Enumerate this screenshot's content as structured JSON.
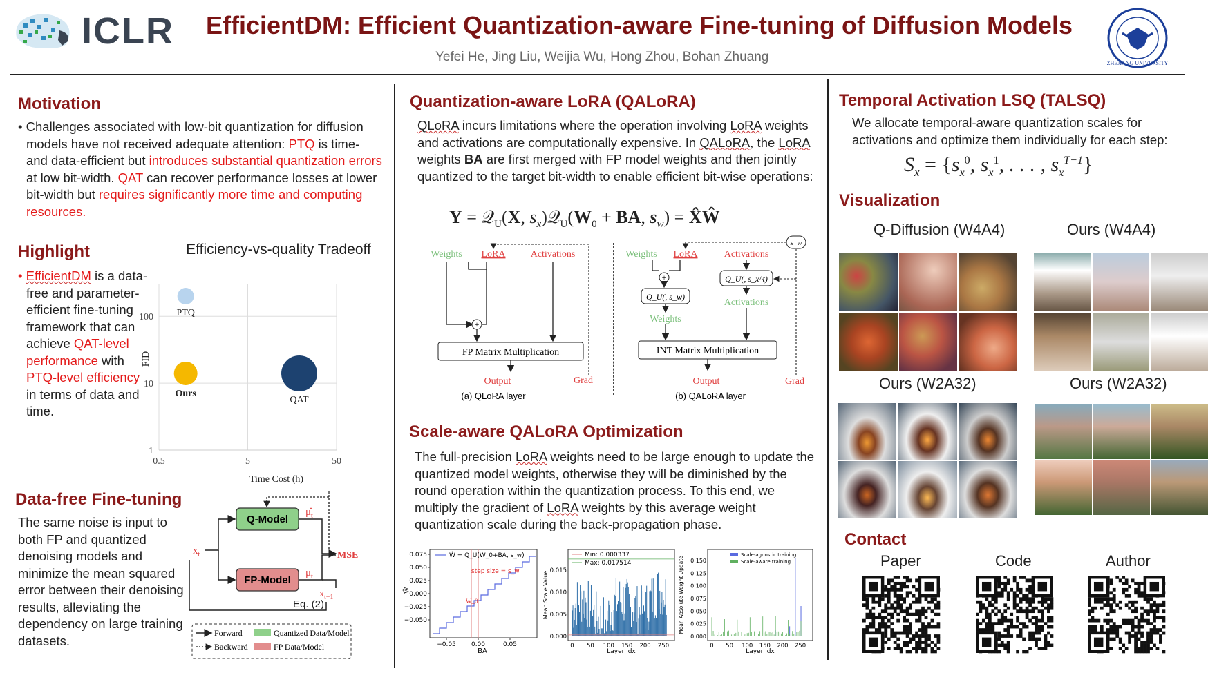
{
  "header": {
    "logo": "ICLR",
    "title": "EfficientDM: Efficient Quantization-aware Fine-tuning of Diffusion Models",
    "authors": "Yefei He, Jing Liu, Weijia Wu, Hong Zhou, Bohan Zhuang",
    "university_seal": "ZHEJIANG UNIVERSITY"
  },
  "motivation": {
    "heading": "Motivation",
    "p1": "Challenges associated with low-bit quantization for diffusion models have not received adequate attention: ",
    "ptq": "PTQ",
    "p2": " is time- and data-efficient but ",
    "r1": "introduces substantial quantization errors",
    "p3": " at low bit-width. ",
    "qat": "QAT",
    "p4": " can recover performance losses at lower bit-width but ",
    "r2": "requires significantly more time and computing resources."
  },
  "highlight": {
    "heading": "Highlight",
    "name": "EfficientDM",
    "t1": " is a data-free and parameter-efficient fine-tuning framework that can achieve ",
    "r1": "QAT-level performance",
    "t2": " with ",
    "r2": "PTQ-level efficiency",
    "t3": " in terms of data and time."
  },
  "tradeoff_chart": {
    "title": "Efficiency-vs-quality Tradeoff",
    "xlabel": "Time Cost (h)",
    "ylabel": "FID",
    "xticks": [
      "0.5",
      "5",
      "50"
    ],
    "yticks": [
      "1",
      "10",
      "100"
    ],
    "points": [
      {
        "label": "PTQ",
        "time": 1.0,
        "fid": 200,
        "color": "#b8d4ee"
      },
      {
        "label": "Ours",
        "time": 1.0,
        "fid": 14,
        "color": "#f5b800"
      },
      {
        "label": "QAT",
        "time": 19,
        "fid": 14,
        "color": "#1d4270"
      }
    ]
  },
  "datafree": {
    "heading": "Data-free Fine-tuning",
    "text": "The same noise is input to both FP and quantized denoising models and minimize the mean squared error between their denoising results, alleviating the dependency on large training datasets.",
    "diagram": {
      "xt": "x",
      "xt_sub": "t",
      "qmodel": "Q-Model",
      "fpmodel": "FP-Model",
      "mu_hat": "μ̂",
      "mu": "μ",
      "mu_sub": "t",
      "mse": "MSE",
      "xt1": "x",
      "xt1_sub": "t−1",
      "eq": "Eq. (2)",
      "legend_forward": "Forward",
      "legend_backward": "Backward",
      "legend_q": "Quantized Data/Model",
      "legend_fp": "FP Data/Model"
    }
  },
  "qalora": {
    "heading": "Quantization-aware LoRA (QALoRA)",
    "text_a": "QLoRA",
    "text_b": " incurs limitations where the operation involving ",
    "text_c": "LoRA",
    "text_d": " weights and activations are computationally expensive. In ",
    "text_e": "QALoRA",
    "text_f": ", the ",
    "text_g": "LoRA",
    "text_h": " weights ",
    "text_ba": "BA",
    "text_i": " are first merged with FP model weights and then jointly quantized to the target bit-width to enable efficient bit-wise operations:",
    "equation": "Y = Q_U(X, s_x) Q_U(W_0 + BA, s_w) = X̂Ŵ",
    "fig_a": {
      "weights": "Weights",
      "lora": "LoRA",
      "activations": "Activations",
      "box": "FP Matrix Multiplication",
      "output": "Output",
      "grad": "Grad",
      "caption": "(a) QLoRA layer"
    },
    "fig_b": {
      "weights": "Weights",
      "lora": "LoRA",
      "activations": "Activations",
      "qw": "Q_U(, s_w)",
      "qx": "Q_U(, s_x^t)",
      "weights2": "Weights",
      "activations2": "Activations",
      "box": "INT Matrix Multiplication",
      "output": "Output",
      "grad": "Grad",
      "sw": "s_w",
      "caption": "(b) QALoRA layer"
    }
  },
  "scaleaware": {
    "heading": "Scale-aware QALoRA Optimization",
    "t1": "The full-precision ",
    "lora1": "LoRA",
    "t2": " weights need to be large enough to update the quantized model weights, otherwise they will be diminished by the round operation within the quantization process. To this end, we multiply the gradient of ",
    "lora2": "LoRA",
    "t3": " weights by this average weight quantization scale during the back-propagation phase.",
    "plot1": {
      "legend": "Ŵ = Q_U(W_0+BA, s_w)",
      "annot_step": "step size = s_w",
      "annot_w0": "W_0",
      "ylabel": "Ŵ",
      "xlabel": "BA",
      "yticks": [
        "0.075",
        "0.050",
        "0.025",
        "0.000",
        "−0.025",
        "−0.050"
      ],
      "xticks": [
        "−0.05",
        "0.00",
        "0.05"
      ]
    },
    "plot2": {
      "legend_min": "Min: 0.000337",
      "legend_max": "Max: 0.017514",
      "ylabel": "Mean Scale Value",
      "xlabel": "Layer idx",
      "yticks": [
        "0.015",
        "0.010",
        "0.005",
        "0.000"
      ],
      "xticks": [
        "0",
        "50",
        "100",
        "150",
        "200",
        "250"
      ]
    },
    "plot3": {
      "legend_a": "Scale-agnostic training",
      "legend_b": "Scale-aware training",
      "ylabel": "Mean Absolute Weight Update",
      "xlabel": "Layer idx",
      "yticks": [
        "0.150",
        "0.125",
        "0.100",
        "0.075",
        "0.050",
        "0.025",
        "0.000"
      ],
      "xticks": [
        "0",
        "50",
        "100",
        "150",
        "200",
        "250"
      ]
    }
  },
  "talsq": {
    "heading": "Temporal Activation LSQ (TALSQ)",
    "text": "We allocate temporal-aware quantization scales for activations and optimize them individually for each step:",
    "eq_lhs": "S",
    "eq_lhs_sub": "x",
    "eq_rhs": "= {s_x^0, s_x^1, . . . , s_x^{T−1}}"
  },
  "visualization": {
    "heading": "Visualization",
    "labels": [
      "Q-Diffusion (W4A4)",
      "Ours (W4A4)",
      "Ours (W2A32)",
      "Ours (W2A32)"
    ]
  },
  "contact": {
    "heading": "Contact",
    "labels": [
      "Paper",
      "Code",
      "Author"
    ]
  }
}
